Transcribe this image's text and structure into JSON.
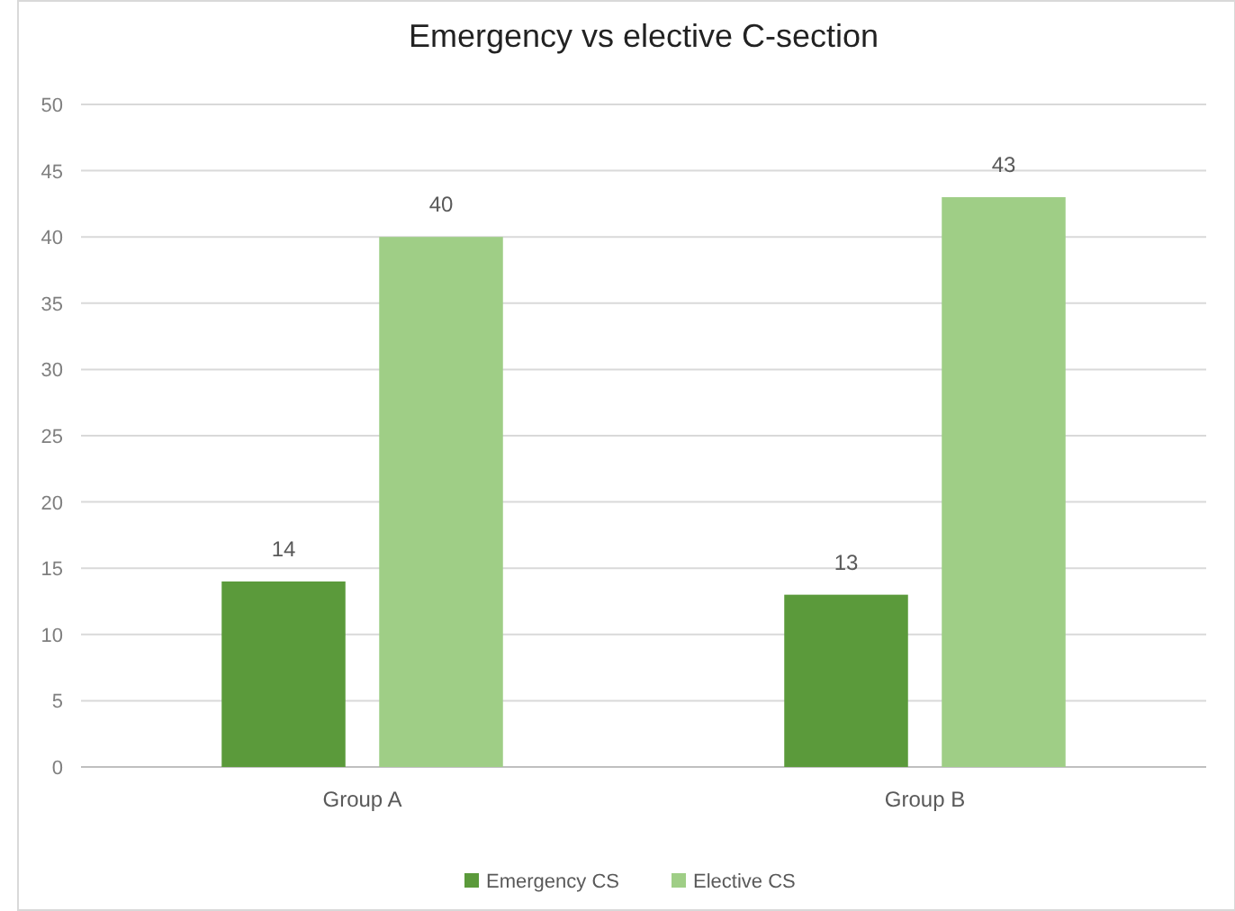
{
  "chart_data": {
    "type": "bar",
    "title": "Emergency vs elective C-section",
    "categories": [
      "Group A",
      "Group B"
    ],
    "series": [
      {
        "name": "Emergency CS",
        "color": "#5b9a3b",
        "values": [
          14,
          13
        ]
      },
      {
        "name": "Elective CS",
        "color": "#9fce86",
        "values": [
          40,
          43
        ]
      }
    ],
    "ylim": [
      0,
      50
    ],
    "yticks": [
      0,
      5,
      10,
      15,
      20,
      25,
      30,
      35,
      40,
      45,
      50
    ],
    "grid": "y",
    "legend": "bottom",
    "data_labels": true
  }
}
